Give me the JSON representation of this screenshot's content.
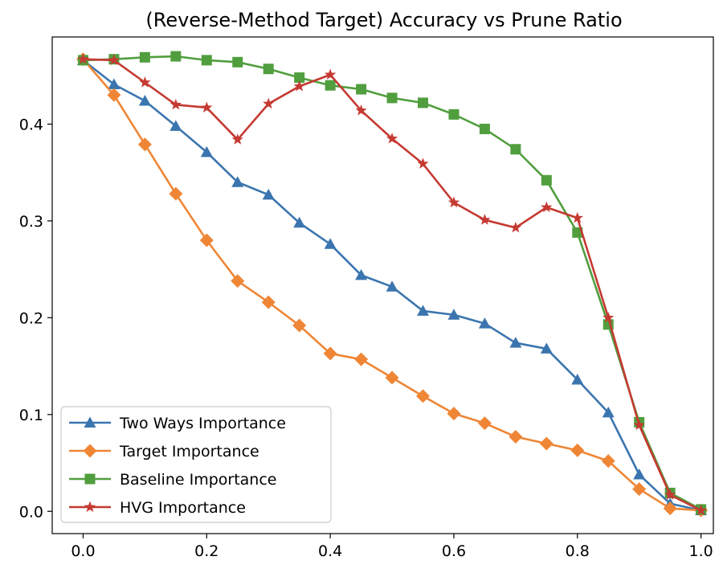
{
  "chart_data": {
    "type": "line",
    "title": "(Reverse-Method Target) Accuracy vs Prune Ratio",
    "xlabel": "",
    "ylabel": "",
    "xlim": [
      -0.05,
      1.02
    ],
    "ylim": [
      -0.023,
      0.49
    ],
    "x_ticks": [
      0.0,
      0.2,
      0.4,
      0.6,
      0.8,
      1.0
    ],
    "x_tick_labels": [
      "0.0",
      "0.2",
      "0.4",
      "0.6",
      "0.8",
      "1.0"
    ],
    "y_ticks": [
      0.0,
      0.1,
      0.2,
      0.3,
      0.4
    ],
    "y_tick_labels": [
      "0.0",
      "0.1",
      "0.2",
      "0.3",
      "0.4"
    ],
    "grid": false,
    "legend_position": "lower-left",
    "x": [
      0.0,
      0.05,
      0.1,
      0.15,
      0.2,
      0.25,
      0.3,
      0.35,
      0.4,
      0.45,
      0.5,
      0.55,
      0.6,
      0.65,
      0.7,
      0.75,
      0.8,
      0.85,
      0.9,
      0.95,
      1.0
    ],
    "series": [
      {
        "name": "Two Ways Importance",
        "color": "#3b75af",
        "marker": "triangle-up",
        "values": [
          0.466,
          0.441,
          0.424,
          0.398,
          0.371,
          0.34,
          0.327,
          0.298,
          0.276,
          0.244,
          0.232,
          0.207,
          0.203,
          0.194,
          0.174,
          0.168,
          0.136,
          0.102,
          0.038,
          0.008,
          0.001
        ]
      },
      {
        "name": "Target Importance",
        "color": "#ef8636",
        "marker": "diamond",
        "values": [
          0.467,
          0.43,
          0.379,
          0.328,
          0.28,
          0.238,
          0.216,
          0.192,
          0.163,
          0.157,
          0.138,
          0.119,
          0.101,
          0.091,
          0.077,
          0.07,
          0.063,
          0.052,
          0.023,
          0.003,
          0.001
        ]
      },
      {
        "name": "Baseline Importance",
        "color": "#519e3e",
        "marker": "square",
        "values": [
          0.466,
          0.467,
          0.469,
          0.47,
          0.466,
          0.464,
          0.457,
          0.448,
          0.44,
          0.436,
          0.427,
          0.422,
          0.41,
          0.395,
          0.374,
          0.342,
          0.288,
          0.193,
          0.092,
          0.019,
          0.002
        ]
      },
      {
        "name": "HVG Importance",
        "color": "#c53a32",
        "marker": "star",
        "values": [
          0.467,
          0.466,
          0.443,
          0.42,
          0.417,
          0.384,
          0.421,
          0.439,
          0.451,
          0.414,
          0.385,
          0.359,
          0.319,
          0.301,
          0.293,
          0.314,
          0.303,
          0.2,
          0.089,
          0.017,
          0.001
        ]
      }
    ]
  }
}
